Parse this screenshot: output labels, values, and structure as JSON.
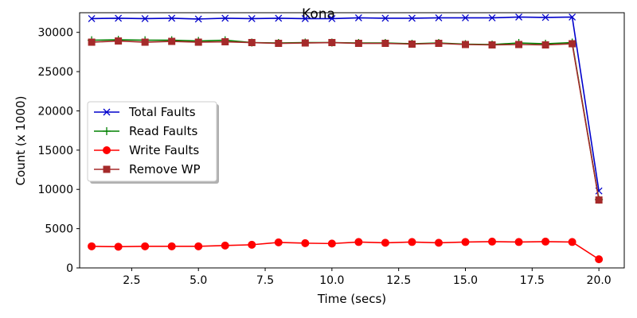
{
  "chart_data": {
    "type": "line",
    "title": "Kona",
    "xlabel": "Time (secs)",
    "ylabel": "Count (x 1000)",
    "xlim": [
      0.55,
      20.95
    ],
    "ylim": [
      0,
      32500
    ],
    "xticks": [
      2.5,
      5.0,
      7.5,
      10.0,
      12.5,
      15.0,
      17.5,
      20.0
    ],
    "xtick_labels": [
      "2.5",
      "5.0",
      "7.5",
      "10.0",
      "12.5",
      "15.0",
      "17.5",
      "20.0"
    ],
    "yticks": [
      0,
      5000,
      10000,
      15000,
      20000,
      25000,
      30000
    ],
    "ytick_labels": [
      "0",
      "5000",
      "10000",
      "15000",
      "20000",
      "25000",
      "30000"
    ],
    "grid": false,
    "legend": "center-left",
    "x": [
      1,
      2,
      3,
      4,
      5,
      6,
      7,
      8,
      9,
      10,
      11,
      12,
      13,
      14,
      15,
      16,
      17,
      18,
      19,
      20
    ],
    "series": [
      {
        "name": "Total Faults",
        "color": "#0000cc",
        "marker": "x",
        "values": [
          31750,
          31800,
          31750,
          31800,
          31700,
          31800,
          31750,
          31800,
          31750,
          31750,
          31850,
          31800,
          31800,
          31850,
          31850,
          31850,
          31950,
          31900,
          31950,
          9800
        ]
      },
      {
        "name": "Read Faults",
        "color": "#008000",
        "marker": "+",
        "values": [
          29000,
          29050,
          29000,
          29000,
          28900,
          29000,
          28700,
          28650,
          28700,
          28700,
          28650,
          28650,
          28550,
          28650,
          28500,
          28450,
          28650,
          28550,
          28700,
          8700
        ]
      },
      {
        "name": "Write Faults",
        "color": "#ff0000",
        "marker": "o",
        "values": [
          2750,
          2700,
          2750,
          2750,
          2750,
          2850,
          2950,
          3250,
          3150,
          3100,
          3300,
          3200,
          3300,
          3200,
          3300,
          3350,
          3300,
          3350,
          3300,
          1100
        ]
      },
      {
        "name": "Remove WP",
        "color": "#a52a2a",
        "marker": "s",
        "values": [
          28750,
          28900,
          28750,
          28850,
          28750,
          28800,
          28700,
          28600,
          28650,
          28700,
          28600,
          28600,
          28500,
          28600,
          28450,
          28400,
          28450,
          28400,
          28550,
          8650
        ]
      }
    ]
  }
}
